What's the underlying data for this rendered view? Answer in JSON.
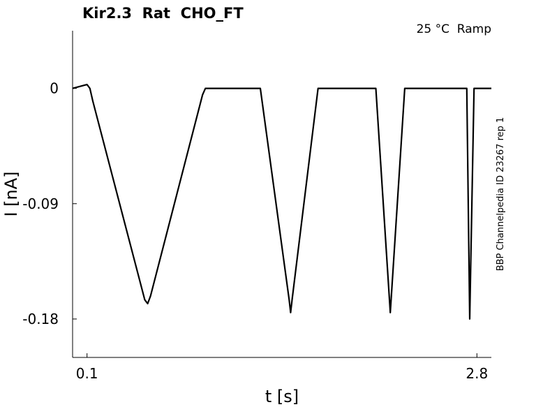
{
  "chart_data": {
    "type": "line",
    "title": "Kir2.3  Rat  CHO_FT",
    "subtitle": "25 °C  Ramp",
    "side_note": "BBP Channelpedia ID 23267 rep 1",
    "xlabel": "t [s]",
    "ylabel": "I [nA]",
    "xlim": [
      -0.0,
      2.9
    ],
    "ylim": [
      -0.21,
      0.045
    ],
    "x_ticks": [
      {
        "value": 0.1,
        "label": "0.1"
      },
      {
        "value": 2.8,
        "label": "2.8"
      }
    ],
    "y_ticks": [
      {
        "value": 0,
        "label": "0"
      },
      {
        "value": -0.09,
        "label": "-0.09"
      },
      {
        "value": -0.18,
        "label": "-0.18"
      }
    ],
    "grid": false,
    "series": [
      {
        "color": "#000000",
        "points": [
          [
            0.0,
            0.0
          ],
          [
            0.1,
            0.003
          ],
          [
            0.12,
            0.0
          ],
          [
            0.14,
            -0.01
          ],
          [
            0.5,
            -0.165
          ],
          [
            0.52,
            -0.168
          ],
          [
            0.54,
            -0.162
          ],
          [
            0.9,
            -0.005
          ],
          [
            0.92,
            0.0
          ],
          [
            1.3,
            0.0
          ],
          [
            1.5,
            -0.165
          ],
          [
            1.51,
            -0.175
          ],
          [
            1.52,
            -0.165
          ],
          [
            1.7,
            0.0
          ],
          [
            2.1,
            0.0
          ],
          [
            2.2,
            -0.175
          ],
          [
            2.3,
            0.0
          ],
          [
            2.73,
            0.0
          ],
          [
            2.75,
            -0.18
          ],
          [
            2.78,
            0.0
          ],
          [
            2.9,
            0.0
          ]
        ]
      }
    ]
  }
}
